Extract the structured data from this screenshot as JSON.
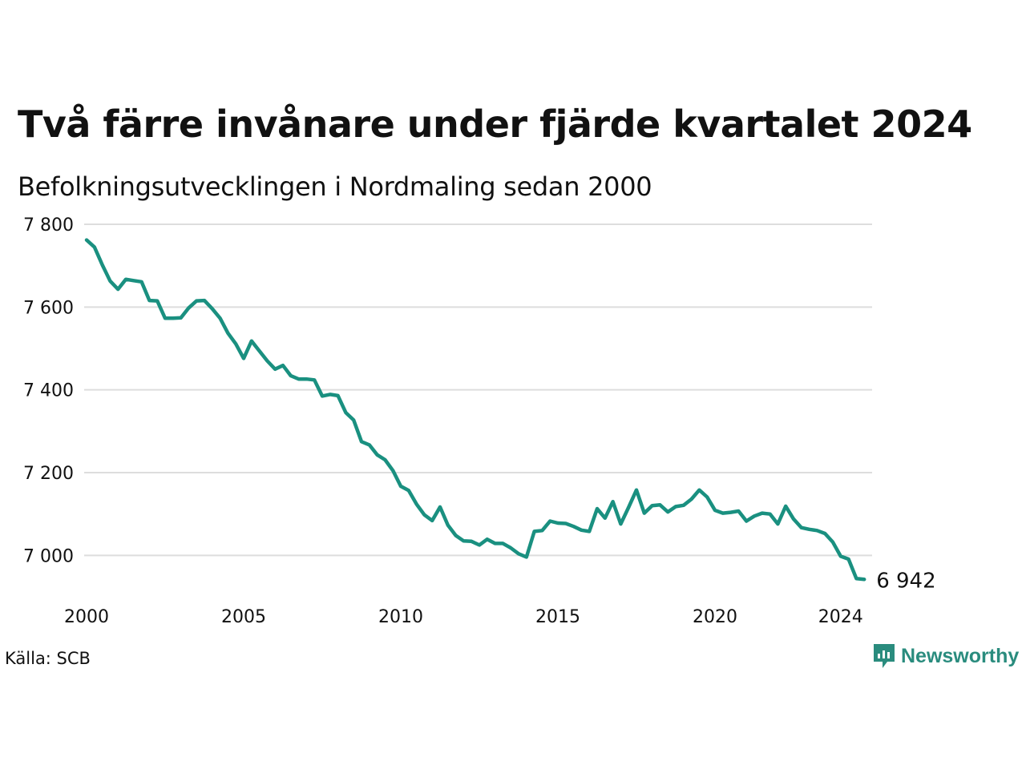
{
  "title": "Två färre invånare under fjärde kvartalet 2024",
  "subtitle": "Befolkningsutvecklingen i Nordmaling sedan 2000",
  "source": "Källa: SCB",
  "brand": {
    "name": "Newsworthy",
    "color": "#2a8c7e",
    "icon": "newsworthy-logo-icon"
  },
  "chart_data": {
    "type": "line",
    "line_color": "#1a9080",
    "grid": true,
    "x_start": 2000,
    "x_step": 0.25,
    "xlim": [
      2000,
      2025
    ],
    "ylim": [
      6900,
      7800
    ],
    "y_ticks": [
      {
        "value": 7000,
        "label": "7 000"
      },
      {
        "value": 7200,
        "label": "7 200"
      },
      {
        "value": 7400,
        "label": "7 400"
      },
      {
        "value": 7600,
        "label": "7 600"
      },
      {
        "value": 7800,
        "label": "7 800"
      }
    ],
    "x_ticks": [
      {
        "value": 2000,
        "label": "2000"
      },
      {
        "value": 2005,
        "label": "2005"
      },
      {
        "value": 2010,
        "label": "2010"
      },
      {
        "value": 2015,
        "label": "2015"
      },
      {
        "value": 2020,
        "label": "2020"
      },
      {
        "value": 2024,
        "label": "2024"
      }
    ],
    "end_label": "6 942",
    "values": [
      7762,
      7745,
      7702,
      7663,
      7643,
      7667,
      7664,
      7661,
      7616,
      7615,
      7573,
      7573,
      7574,
      7598,
      7615,
      7616,
      7596,
      7573,
      7537,
      7511,
      7476,
      7518,
      7494,
      7470,
      7450,
      7459,
      7434,
      7426,
      7426,
      7424,
      7385,
      7389,
      7386,
      7345,
      7327,
      7275,
      7267,
      7243,
      7231,
      7205,
      7167,
      7157,
      7124,
      7098,
      7084,
      7117,
      7073,
      7048,
      7035,
      7034,
      7025,
      7039,
      7029,
      7029,
      7018,
      7004,
      6996,
      7058,
      7060,
      7083,
      7078,
      7077,
      7070,
      7061,
      7058,
      7113,
      7090,
      7130,
      7076,
      7116,
      7158,
      7102,
      7120,
      7122,
      7105,
      7118,
      7121,
      7136,
      7158,
      7141,
      7109,
      7102,
      7104,
      7107,
      7083,
      7095,
      7102,
      7100,
      7076,
      7119,
      7088,
      7067,
      7063,
      7060,
      7053,
      7032,
      6998,
      6991,
      6944,
      6942
    ]
  }
}
